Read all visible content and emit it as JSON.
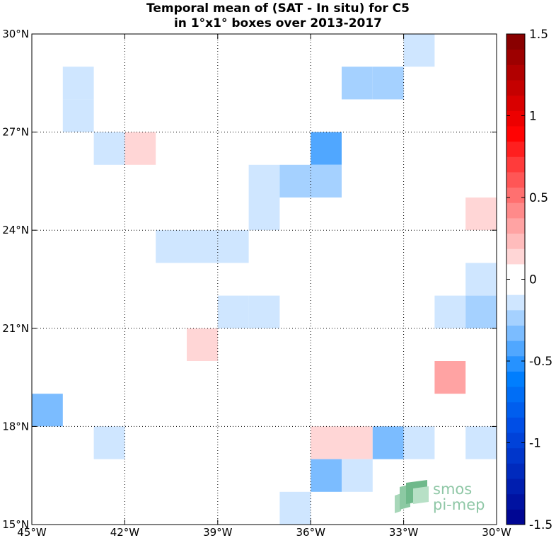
{
  "chart_data": {
    "type": "heatmap",
    "title_line1": "Temporal mean of (SAT - In situ) for C5",
    "title_line2": "in 1°x1° boxes over 2013-2017",
    "xlim": [
      -45,
      -30
    ],
    "ylim": [
      15,
      30
    ],
    "x_ticks": [
      {
        "value": -45,
        "label": "45°W"
      },
      {
        "value": -42,
        "label": "42°W"
      },
      {
        "value": -39,
        "label": "39°W"
      },
      {
        "value": -36,
        "label": "36°W"
      },
      {
        "value": -33,
        "label": "33°W"
      },
      {
        "value": -30,
        "label": "30°W"
      }
    ],
    "y_ticks": [
      {
        "value": 15,
        "label": "15°N"
      },
      {
        "value": 18,
        "label": "18°N"
      },
      {
        "value": 21,
        "label": "21°N"
      },
      {
        "value": 24,
        "label": "24°N"
      },
      {
        "value": 27,
        "label": "27°N"
      },
      {
        "value": 30,
        "label": "30°N"
      }
    ],
    "grid": true,
    "colorbar": {
      "min": -1.5,
      "max": 1.5,
      "levels": 32,
      "colormap": "blue-white-red",
      "ticks": [
        {
          "value": 1.5,
          "label": "1.5"
        },
        {
          "value": 1,
          "label": "1"
        },
        {
          "value": 0.5,
          "label": "0.5"
        },
        {
          "value": 0,
          "label": "0"
        },
        {
          "value": -0.5,
          "label": "-0.5"
        },
        {
          "value": -1,
          "label": "-1"
        },
        {
          "value": -1.5,
          "label": "-1.5"
        }
      ]
    },
    "cells": [
      {
        "lon": -33,
        "lat": 29,
        "value": -0.1
      },
      {
        "lon": -44,
        "lat": 28,
        "value": -0.1
      },
      {
        "lon": -35,
        "lat": 28,
        "value": -0.25
      },
      {
        "lon": -34,
        "lat": 28,
        "value": -0.25
      },
      {
        "lon": -44,
        "lat": 27,
        "value": -0.1
      },
      {
        "lon": -43,
        "lat": 26,
        "value": -0.1
      },
      {
        "lon": -42,
        "lat": 26,
        "value": 0.15
      },
      {
        "lon": -36,
        "lat": 26,
        "value": -0.4
      },
      {
        "lon": -38,
        "lat": 25,
        "value": -0.1
      },
      {
        "lon": -37,
        "lat": 25,
        "value": -0.25
      },
      {
        "lon": -36,
        "lat": 25,
        "value": -0.25
      },
      {
        "lon": -38,
        "lat": 24,
        "value": -0.1
      },
      {
        "lon": -31,
        "lat": 24,
        "value": 0.15
      },
      {
        "lon": -41,
        "lat": 23,
        "value": -0.1
      },
      {
        "lon": -40,
        "lat": 23,
        "value": -0.1
      },
      {
        "lon": -39,
        "lat": 23,
        "value": -0.1
      },
      {
        "lon": -31,
        "lat": 22,
        "value": -0.1
      },
      {
        "lon": -39,
        "lat": 21,
        "value": -0.1
      },
      {
        "lon": -38,
        "lat": 21,
        "value": -0.1
      },
      {
        "lon": -32,
        "lat": 21,
        "value": -0.1
      },
      {
        "lon": -31,
        "lat": 21,
        "value": -0.25
      },
      {
        "lon": -40,
        "lat": 20,
        "value": 0.15
      },
      {
        "lon": -32,
        "lat": 19,
        "value": 0.3
      },
      {
        "lon": -45,
        "lat": 18,
        "value": -0.3
      },
      {
        "lon": -43,
        "lat": 17,
        "value": -0.1
      },
      {
        "lon": -36,
        "lat": 17,
        "value": 0.15
      },
      {
        "lon": -35,
        "lat": 17,
        "value": 0.15
      },
      {
        "lon": -34,
        "lat": 17,
        "value": -0.3
      },
      {
        "lon": -33,
        "lat": 17,
        "value": -0.1
      },
      {
        "lon": -31,
        "lat": 17,
        "value": -0.1
      },
      {
        "lon": -36,
        "lat": 16,
        "value": -0.3
      },
      {
        "lon": -35,
        "lat": 16,
        "value": -0.1
      },
      {
        "lon": -37,
        "lat": 15,
        "value": -0.1
      }
    ]
  },
  "watermark": {
    "line1": "smos",
    "line2": "pi-mep"
  }
}
